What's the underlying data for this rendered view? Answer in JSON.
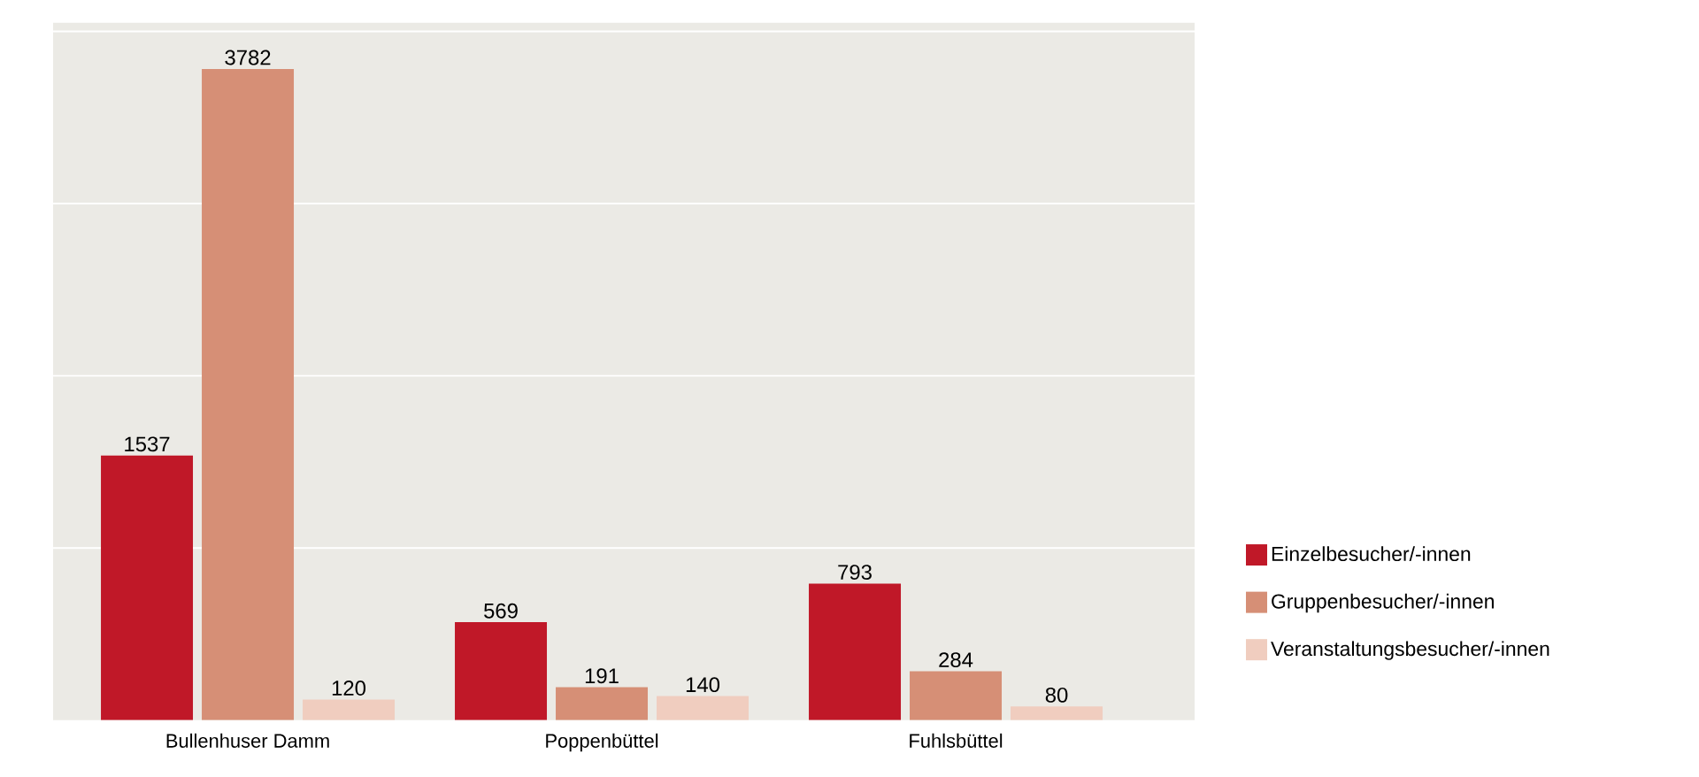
{
  "chart_data": {
    "type": "bar",
    "categories": [
      "Bullenhuser Damm",
      "Poppenbüttel",
      "Fuhlsbüttel"
    ],
    "series": [
      {
        "name": "Einzelbesucher/-innen",
        "color": "#c01828",
        "values": [
          1537,
          569,
          793
        ]
      },
      {
        "name": "Gruppenbesucher/-innen",
        "color": "#d68f76",
        "values": [
          3782,
          191,
          284
        ]
      },
      {
        "name": "Veranstaltungsbesucher/-innen",
        "color": "#f0cdbf",
        "values": [
          120,
          140,
          80
        ]
      }
    ],
    "ylim": [
      0,
      4050
    ],
    "yticks": [
      {
        "value": 1000,
        "label": null
      },
      {
        "value": 2000,
        "label": null
      },
      {
        "value": 3000,
        "label": null
      },
      {
        "value": 4000,
        "label": null
      }
    ],
    "grid": "y",
    "legend": "right",
    "tick_labels": "x",
    "data_labels": true
  }
}
